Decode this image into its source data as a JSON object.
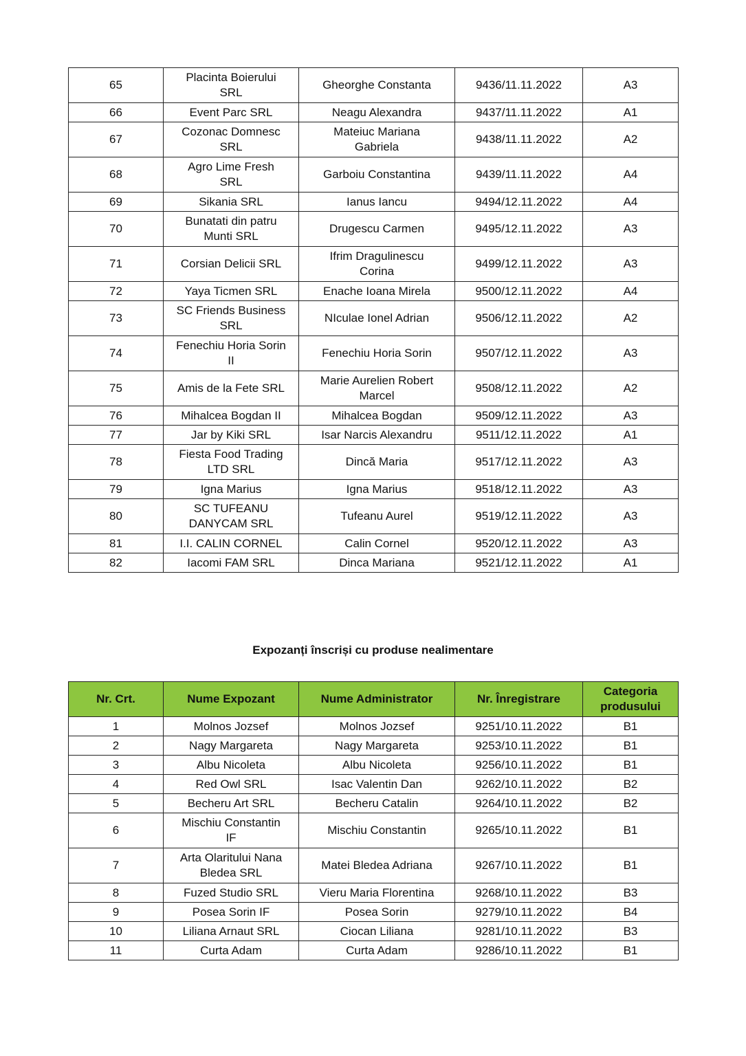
{
  "table1": {
    "rows": [
      [
        "65",
        "Placinta Boierului\nSRL",
        "Gheorghe Constanta",
        "9436/11.11.2022",
        "A3"
      ],
      [
        "66",
        "Event Parc SRL",
        "Neagu Alexandra",
        "9437/11.11.2022",
        "A1"
      ],
      [
        "67",
        "Cozonac Domnesc\nSRL",
        "Mateiuc Mariana\nGabriela",
        "9438/11.11.2022",
        "A2"
      ],
      [
        "68",
        "Agro Lime Fresh\nSRL",
        "Garboiu Constantina",
        "9439/11.11.2022",
        "A4"
      ],
      [
        "69",
        "Sikania SRL",
        "Ianus Iancu",
        "9494/12.11.2022",
        "A4"
      ],
      [
        "70",
        "Bunatati din patru\nMunti SRL",
        "Drugescu Carmen",
        "9495/12.11.2022",
        "A3"
      ],
      [
        "71",
        "Corsian Delicii SRL",
        "Ifrim Dragulinescu\nCorina",
        "9499/12.11.2022",
        "A3"
      ],
      [
        "72",
        "Yaya Ticmen SRL",
        "Enache Ioana Mirela",
        "9500/12.11.2022",
        "A4"
      ],
      [
        "73",
        "SC Friends Business\nSRL",
        "NIculae Ionel Adrian",
        "9506/12.11.2022",
        "A2"
      ],
      [
        "74",
        "Fenechiu Horia Sorin\nII",
        "Fenechiu Horia Sorin",
        "9507/12.11.2022",
        "A3"
      ],
      [
        "75",
        "Amis de la Fete SRL",
        "Marie Aurelien Robert\nMarcel",
        "9508/12.11.2022",
        "A2"
      ],
      [
        "76",
        "Mihalcea Bogdan II",
        "Mihalcea Bogdan",
        "9509/12.11.2022",
        "A3"
      ],
      [
        "77",
        "Jar by Kiki SRL",
        "Isar Narcis Alexandru",
        "9511/12.11.2022",
        "A1"
      ],
      [
        "78",
        "Fiesta Food Trading\nLTD SRL",
        "Dincă Maria",
        "9517/12.11.2022",
        "A3"
      ],
      [
        "79",
        "Igna Marius",
        "Igna Marius",
        "9518/12.11.2022",
        "A3"
      ],
      [
        "80",
        "SC TUFEANU\nDANYCAM SRL",
        "Tufeanu Aurel",
        "9519/12.11.2022",
        "A3"
      ],
      [
        "81",
        "I.I. CALIN CORNEL",
        "Calin Cornel",
        "9520/12.11.2022",
        "A3"
      ],
      [
        "82",
        "Iacomi FAM SRL",
        "Dinca Mariana",
        "9521/12.11.2022",
        "A1"
      ]
    ]
  },
  "section_title": "Expozanți înscriși cu produse nealimentare",
  "table2": {
    "header_color": "#8dc63f",
    "headers": [
      "Nr. Crt.",
      "Nume Expozant",
      "Nume Administrator",
      "Nr. Înregistrare",
      "Categoria\nprodusului"
    ],
    "rows": [
      [
        "1",
        "Molnos Jozsef",
        "Molnos Jozsef",
        "9251/10.11.2022",
        "B1"
      ],
      [
        "2",
        "Nagy Margareta",
        "Nagy Margareta",
        "9253/10.11.2022",
        "B1"
      ],
      [
        "3",
        "Albu Nicoleta",
        "Albu Nicoleta",
        "9256/10.11.2022",
        "B1"
      ],
      [
        "4",
        "Red Owl SRL",
        "Isac Valentin Dan",
        "9262/10.11.2022",
        "B2"
      ],
      [
        "5",
        "Becheru Art SRL",
        "Becheru Catalin",
        "9264/10.11.2022",
        "B2"
      ],
      [
        "6",
        "Mischiu Constantin\nIF",
        "Mischiu Constantin",
        "9265/10.11.2022",
        "B1"
      ],
      [
        "7",
        "Arta Olaritului Nana\nBledea SRL",
        "Matei Bledea Adriana",
        "9267/10.11.2022",
        "B1"
      ],
      [
        "8",
        "Fuzed Studio SRL",
        "Vieru Maria Florentina",
        "9268/10.11.2022",
        "B3"
      ],
      [
        "9",
        "Posea Sorin IF",
        "Posea Sorin",
        "9279/10.11.2022",
        "B4"
      ],
      [
        "10",
        "Liliana Arnaut SRL",
        "Ciocan Liliana",
        "9281/10.11.2022",
        "B3"
      ],
      [
        "11",
        "Curta Adam",
        "Curta Adam",
        "9286/10.11.2022",
        "B1"
      ]
    ]
  }
}
